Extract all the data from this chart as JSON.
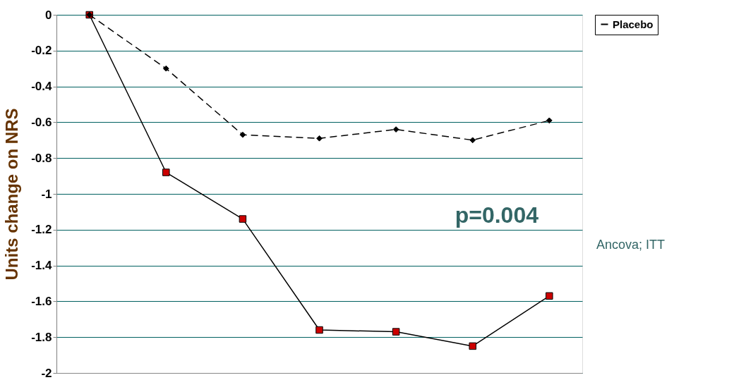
{
  "chart_data": {
    "type": "line",
    "ylabel": "Units change on NRS",
    "categories": [
      null,
      null,
      null,
      null,
      null,
      null,
      null
    ],
    "series": [
      {
        "color": "#cc0000",
        "marker": "square",
        "line_style": "solid",
        "values": [
          0,
          -0.88,
          -1.14,
          -1.76,
          -1.77,
          -1.85,
          -1.57
        ]
      },
      {
        "name": "Placebo",
        "color": "#000000",
        "marker": "diamond",
        "line_style": "dashed",
        "values": [
          0,
          -0.3,
          -0.67,
          -0.69,
          -0.64,
          -0.7,
          -0.59
        ]
      }
    ],
    "ylim": [
      -2,
      0
    ],
    "yticks": [
      0,
      -0.2,
      -0.4,
      -0.6,
      -0.8,
      -1,
      -1.2,
      -1.4,
      -1.6,
      -1.8,
      -2
    ],
    "grid": "y",
    "legend": "right",
    "tick_labels": "y",
    "annotations": [
      "p=0.004",
      "Ancova; ITT"
    ]
  }
}
